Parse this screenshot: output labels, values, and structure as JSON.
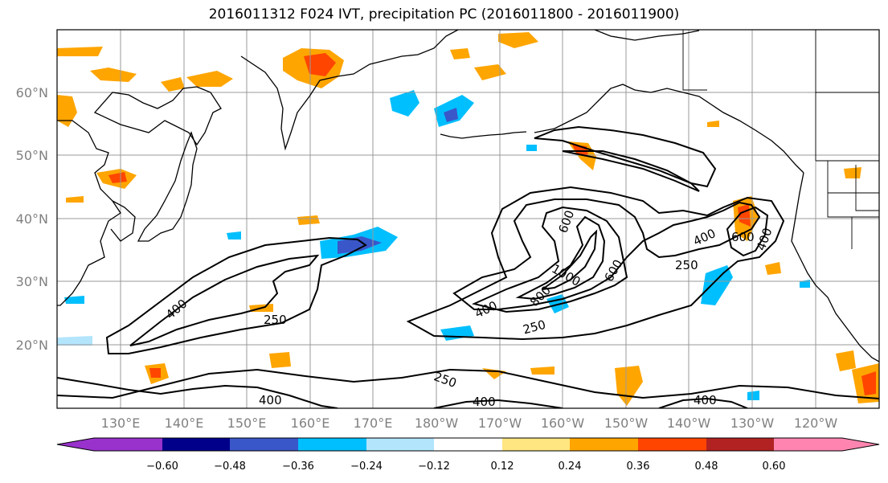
{
  "title": "2016011312 F024 IVT, precipitation PC (2016011800 - 2016011900)",
  "axes": {
    "lat_labels": [
      "20°N",
      "30°N",
      "40°N",
      "50°N",
      "60°N"
    ],
    "lon_labels": [
      "130°E",
      "140°E",
      "150°E",
      "160°E",
      "170°E",
      "180°W",
      "170°W",
      "160°W",
      "150°W",
      "140°W",
      "130°W",
      "120°W"
    ]
  },
  "contour_labels": {
    "west": [
      "400",
      "250"
    ],
    "center": [
      "600",
      "400",
      "800",
      "1000",
      "600",
      "250"
    ],
    "east": [
      "400",
      "600",
      "400",
      "250"
    ],
    "south": [
      "400",
      "250",
      "400",
      "400"
    ]
  },
  "colorbar": {
    "labels": [
      "−0.60",
      "−0.48",
      "−0.36",
      "−0.24",
      "−0.12",
      "0.12",
      "0.24",
      "0.36",
      "0.48",
      "0.60"
    ],
    "colors": [
      "#9932cc",
      "#00008b",
      "#3a57c9",
      "#00bfff",
      "#b3e5fc",
      "#ffffff",
      "#ffe680",
      "#ffa500",
      "#ff4500",
      "#b22222",
      "#ff85b0"
    ]
  },
  "colors": {
    "grid": "#999999",
    "coast": "#000000",
    "contour": "#000000"
  }
}
